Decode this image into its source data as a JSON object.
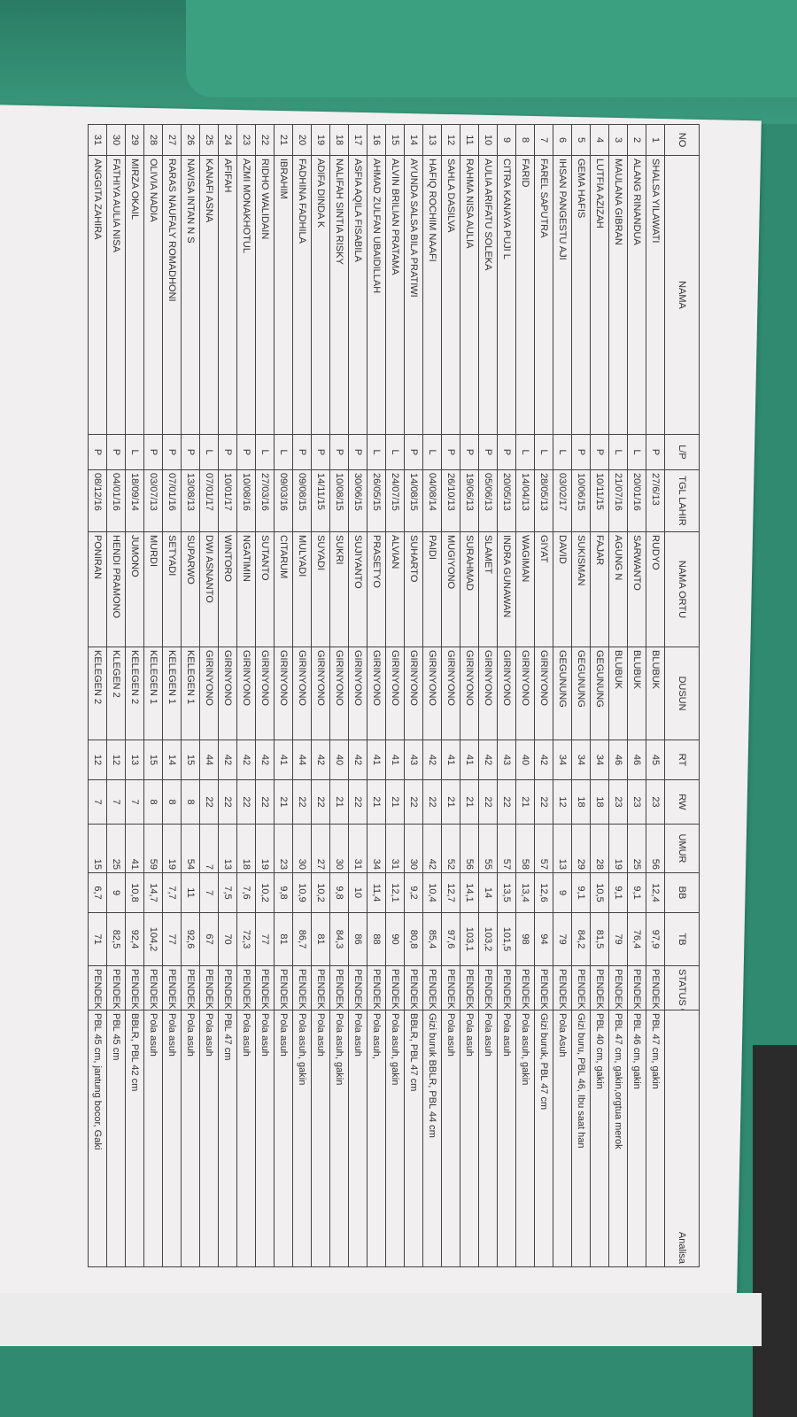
{
  "headers": {
    "no": "NO",
    "nama": "NAMA",
    "lp": "L/P",
    "tgl": "TGL LAHIR",
    "ortu": "NAMA ORTU",
    "dusun": "DUSUN",
    "rt": "RT",
    "rw": "RW",
    "umur": "UMUR",
    "bb": "BB",
    "tb": "TB",
    "status": "STATUS GIZI",
    "analisa": "Analisa"
  },
  "rows": [
    [
      "1",
      "SHALSA YILAWATI",
      "P",
      "27/6/13",
      "RUDYO",
      "BLUBUK",
      "45",
      "23",
      "56",
      "12,4",
      "97,9",
      "PENDEK",
      "PBL 47 cm, gakin"
    ],
    [
      "2",
      "ALANG RINANDUA",
      "L",
      "20/01/16",
      "SARWANTO",
      "BLUBUK",
      "46",
      "23",
      "25",
      "9,1",
      "76,4",
      "PENDEK",
      "PBL 46 cm, gakin"
    ],
    [
      "3",
      "MAULANA GIBRAN",
      "L",
      "21/07/16",
      "AGUNG N",
      "BLUBUK",
      "46",
      "23",
      "19",
      "9,1",
      "79",
      "PENDEK",
      "PBL 47 cm, gakin,orgtua merok"
    ],
    [
      "4",
      "LUTFIA AZIZAH",
      "P",
      "10/11/15",
      "FAJAR",
      "GEGUNUNG",
      "34",
      "18",
      "28",
      "10,5",
      "81,5",
      "PENDEK",
      "PBL 40 cm, gakin"
    ],
    [
      "5",
      "GEMA HAFIS",
      "P",
      "10/06/15",
      "SUKISMAN",
      "GEGUNUNG",
      "34",
      "18",
      "29",
      "9,1",
      "84,2",
      "PENDEK",
      "Gizi buru, PBL 46, Ibu saat han"
    ],
    [
      "6",
      "IHSAN PANGESTU AJI",
      "L",
      "03/02/17",
      "DAVID",
      "GEGUNUNG",
      "34",
      "12",
      "13",
      "9",
      "79",
      "PENDEK",
      "Pola Asuh"
    ],
    [
      "7",
      "FAREL SAPUTRA",
      "L",
      "28/05/13",
      "GIYAT",
      "GIRINYONO",
      "42",
      "22",
      "57",
      "12,6",
      "94",
      "PENDEK",
      "Gizi buruk, PBL 47 cm"
    ],
    [
      "8",
      "FARID",
      "L",
      "14/04/13",
      "WAGIMAN",
      "GIRINYONO",
      "40",
      "21",
      "58",
      "13,4",
      "98",
      "PENDEK",
      "Pola asuh, gakin"
    ],
    [
      "9",
      "CITRA KANAYA PUJI L",
      "P",
      "20/05/13",
      "INDRA GUNAWAN",
      "GIRINYONO",
      "43",
      "22",
      "57",
      "13,5",
      "101,5",
      "PENDEK",
      "Pola asuh"
    ],
    [
      "10",
      "AULIA ARIFATU SOLEKA",
      "P",
      "05/06/13",
      "SLAMET",
      "GIRINYONO",
      "42",
      "22",
      "55",
      "14",
      "103,2",
      "PENDEK",
      "Pola asuh"
    ],
    [
      "11",
      "RAHMA NISA AULIA",
      "P",
      "19/06/13",
      "SURAHMAD",
      "GIRINYONO",
      "41",
      "21",
      "56",
      "14,1",
      "103,1",
      "PENDEK",
      "Pola asuh"
    ],
    [
      "12",
      "SAHLA DASILVA",
      "P",
      "26/10/13",
      "MUGIYONO",
      "GIRINYONO",
      "41",
      "21",
      "52",
      "12,7",
      "97,6",
      "PENDEK",
      "Pola asuh"
    ],
    [
      "13",
      "HAFIQ ROCHIM NAAFI",
      "L",
      "04/08/14",
      "PAIDI",
      "GIRINYONO",
      "42",
      "22",
      "42",
      "10,4",
      "85,4",
      "PENDEK",
      "Gizi buruk BBLR, PBL 44 cm"
    ],
    [
      "14",
      "AYUNDA SALSA BILA PRATIWI",
      "P",
      "14/08/15",
      "SUHARTO",
      "GIRINYONO",
      "43",
      "22",
      "30",
      "9,2",
      "80,8",
      "PENDEK",
      "BBLR, PBL 47 cm"
    ],
    [
      "15",
      "ALVIN BRILIAN PRATAMA",
      "L",
      "24/07/15",
      "ALVIAN",
      "GIRINYONO",
      "41",
      "21",
      "31",
      "12,1",
      "90",
      "PENDEK",
      "Pola asuh, gakin"
    ],
    [
      "16",
      "AHMAD ZULFAN UBAIDILLAH",
      "L",
      "26/05/15",
      "PRASETYO",
      "GIRINYONO",
      "41",
      "21",
      "34",
      "11,4",
      "88",
      "PENDEK",
      "Pola asuh,"
    ],
    [
      "17",
      "ASFIA AQILA FISABILA",
      "P",
      "30/06/15",
      "SUJIYANTO",
      "GIRINYONO",
      "42",
      "22",
      "31",
      "10",
      "86",
      "PENDEK",
      "Pola asuh"
    ],
    [
      "18",
      "NALIFAH SINTIA RISKY",
      "P",
      "10/08/15",
      "SUKRI",
      "GIRINYONO",
      "40",
      "21",
      "30",
      "9,8",
      "84,3",
      "PENDEK",
      "Pola asuh, gakin"
    ],
    [
      "19",
      "ADIFA DINDA K",
      "P",
      "14/11/15",
      "SUYADI",
      "GIRINYONO",
      "42",
      "22",
      "27",
      "10,2",
      "81",
      "PENDEK",
      "Pola asuh"
    ],
    [
      "20",
      "FADHINA FADHILA",
      "P",
      "09/08/15",
      "MULYADI",
      "GIRINYONO",
      "44",
      "22",
      "30",
      "10,9",
      "86,7",
      "PENDEK",
      "Pola asuh, gakin"
    ],
    [
      "21",
      "IBRAHIM",
      "L",
      "09/03/16",
      "CITARUM",
      "GIRINYONO",
      "41",
      "21",
      "23",
      "9,8",
      "81",
      "PENDEK",
      "Pola asuh"
    ],
    [
      "22",
      "RIDHO WALIDAIN",
      "L",
      "27/03/16",
      "SUTANTO",
      "GIRINYONO",
      "42",
      "22",
      "19",
      "10,2",
      "77",
      "PENDEK",
      "Pola asuh"
    ],
    [
      "23",
      "AZMI MONAKHOTUL",
      "P",
      "10/08/16",
      "NGATIMIN",
      "GIRINYONO",
      "42",
      "22",
      "18",
      "7,6",
      "72,3",
      "PENDEK",
      "Pola asuh"
    ],
    [
      "24",
      "AFIFAH",
      "P",
      "10/01/17",
      "WINTORO",
      "GIRINYONO",
      "42",
      "22",
      "13",
      "7,5",
      "70",
      "PENDEK",
      "PBL 47 cm"
    ],
    [
      "25",
      "KANAFI ASNA",
      "L",
      "07/01/17",
      "DWI ASNANTO",
      "GIRINYONO",
      "44",
      "22",
      "7",
      "7",
      "67",
      "PENDEK",
      "Pola asuh"
    ],
    [
      "26",
      "NAVISA INTAN N S",
      "P",
      "13/08/13",
      "SUPARWO",
      "KELEGEN 1",
      "15",
      "8",
      "54",
      "11",
      "92,6",
      "PENDEK",
      "Pola asuh"
    ],
    [
      "27",
      "RARAS NAUFALY ROMADHONI",
      "P",
      "07/01/16",
      "SETYADI",
      "KELEGEN 1",
      "14",
      "8",
      "19",
      "7,7",
      "77",
      "PENDEK",
      "Pola asuh"
    ],
    [
      "28",
      "OLIVIA NADIA",
      "P",
      "03/07/13",
      "MURDI",
      "KELEGEN 1",
      "15",
      "8",
      "59",
      "14,7",
      "104,2",
      "PENDEK",
      "Pola asuh"
    ],
    [
      "29",
      "MIRZA OKAIL",
      "L",
      "18/09/14",
      "JUMONO",
      "KELEGEN 2",
      "13",
      "7",
      "41",
      "10,8",
      "92,4",
      "PENDEK",
      "BBLR, PBL 42 cm"
    ],
    [
      "30",
      "FATHIYA AULIA NISA",
      "P",
      "04/01/16",
      "HENDI PRAMONO",
      "KLEGEN 2",
      "12",
      "7",
      "25",
      "9",
      "82,5",
      "PENDEK",
      "PBL 45 cm"
    ],
    [
      "31",
      "ANGGITA ZAHIRA",
      "P",
      "08/12/16",
      "PONIRAN",
      "KELEGEN 2",
      "12",
      "7",
      "15",
      "6,7",
      "71",
      "PENDEK",
      "PBL 45 cm, jantung bocor, Gaki"
    ]
  ]
}
